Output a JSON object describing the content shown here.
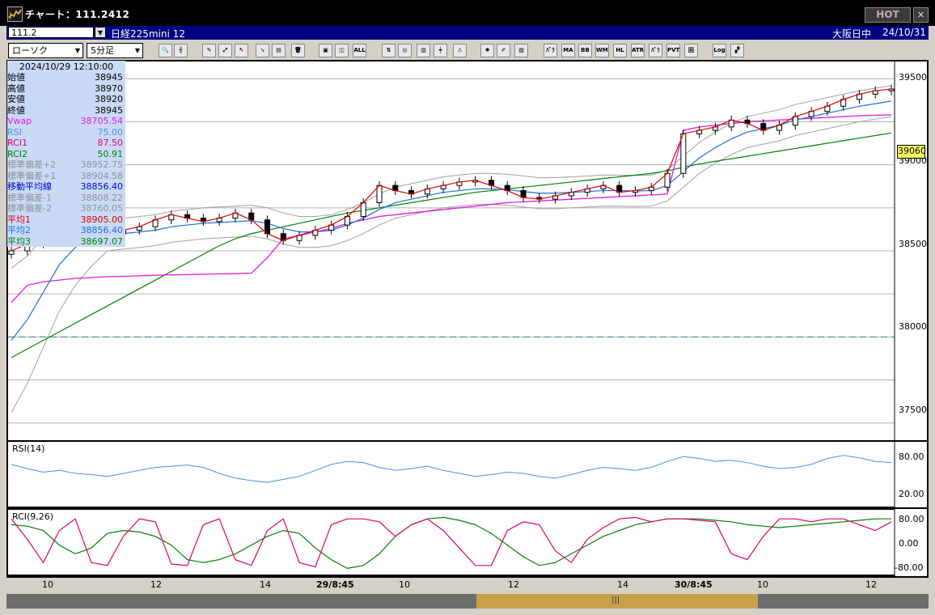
{
  "window": {
    "title": "チャート：111.2412",
    "hot_label": "HOT",
    "close_label": "×"
  },
  "info": {
    "symbol_code": "111.2",
    "symbol_name": "日経225mini 12",
    "market": "大阪日中",
    "date": "24/10/31"
  },
  "toolbar": {
    "chart_type": "ローソク",
    "interval": "5分足",
    "buttons": [
      {
        "label": "🔍"
      },
      {
        "label": "╫"
      },
      {
        "label": "✎"
      },
      {
        "label": "⤢"
      },
      {
        "label": "↖"
      },
      {
        "label": "➘"
      },
      {
        "label": "▤"
      },
      {
        "label": "🗑"
      },
      {
        "label": "▣"
      },
      {
        "label": "◫"
      },
      {
        "label": "ALL"
      },
      {
        "label": "⇅"
      },
      {
        "label": "◎"
      },
      {
        "label": "▥"
      },
      {
        "label": "┿"
      },
      {
        "label": "⚠"
      },
      {
        "label": "✹"
      },
      {
        "label": "✐"
      },
      {
        "label": "▧"
      },
      {
        "label": "ﾊﾞﾗ"
      },
      {
        "label": "MA"
      },
      {
        "label": "BB"
      },
      {
        "label": "WMA"
      },
      {
        "label": "HL"
      },
      {
        "label": "ATR"
      },
      {
        "label": "ﾊﾟﾗ"
      },
      {
        "label": "PVT"
      },
      {
        "label": "回"
      },
      {
        "label": "Log"
      },
      {
        "label": "▞"
      }
    ]
  },
  "panel": {
    "timestamp": "2024/10/29  12:10:00",
    "rows": [
      {
        "label": "始値",
        "value": "38945",
        "color": "#000000"
      },
      {
        "label": "高値",
        "value": "38970",
        "color": "#000000"
      },
      {
        "label": "安値",
        "value": "38920",
        "color": "#000000"
      },
      {
        "label": "終値",
        "value": "38945",
        "color": "#000000"
      },
      {
        "label": "Vwap",
        "value": "38705.54",
        "color": "#e01be0"
      },
      {
        "label": "RSI",
        "value": "75.00",
        "color": "#4a90e2"
      },
      {
        "label": "RCI1",
        "value": "87.50",
        "color": "#e0006a"
      },
      {
        "label": "RCI2",
        "value": "50.91",
        "color": "#008000"
      },
      {
        "label": "標準偏差+2",
        "value": "38952.75",
        "color": "#909090"
      },
      {
        "label": "標準偏差+1",
        "value": "38904.58",
        "color": "#909090"
      },
      {
        "label": "移動平均線",
        "value": "38856.40",
        "color": "#0000c0"
      },
      {
        "label": "標準偏差-1",
        "value": "38808.22",
        "color": "#909090"
      },
      {
        "label": "標準偏差-2",
        "value": "38760.05",
        "color": "#909090"
      },
      {
        "label": "平均1",
        "value": "38905.00",
        "color": "#e00000"
      },
      {
        "label": "平均2",
        "value": "38856.40",
        "color": "#1e6fd9"
      },
      {
        "label": "平均3",
        "value": "38697.07",
        "color": "#008000"
      }
    ]
  },
  "price_axis": {
    "ticks": [
      "39500",
      "39000",
      "38500",
      "38000",
      "37500"
    ],
    "current_price": "39060",
    "dashed_level": 38000
  },
  "rsi": {
    "label": "RSI(14)",
    "ticks": [
      "80.00",
      "20.00"
    ]
  },
  "rci": {
    "label": "RCI(9,26)",
    "ticks": [
      "80.00",
      "0.00",
      "-80.00"
    ]
  },
  "time_axis": {
    "labels": [
      "10",
      "12",
      "14",
      "29/8:45",
      "10",
      "12",
      "14",
      "30/8:45",
      "10",
      "12"
    ]
  },
  "colors": {
    "ma_blue": "#1e6fd9",
    "vwap": "#e01be0",
    "ma_green": "#008000",
    "avg_red": "#e00000",
    "bband": "#a0a0a0",
    "rsi": "#4a90e2",
    "rci_short": "#e0006a",
    "rci_long": "#008000"
  },
  "chart_data": {
    "type": "line",
    "y_range": [
      37400,
      39600
    ],
    "price_close": [
      38500,
      38540,
      38560,
      38580,
      38590,
      38580,
      38600,
      38620,
      38640,
      38680,
      38710,
      38690,
      38670,
      38690,
      38720,
      38680,
      38600,
      38560,
      38590,
      38620,
      38650,
      38700,
      38780,
      38880,
      38850,
      38830,
      38860,
      38880,
      38900,
      38910,
      38880,
      38850,
      38810,
      38800,
      38820,
      38840,
      38860,
      38880,
      38840,
      38850,
      38870,
      38950,
      39180,
      39200,
      39220,
      39260,
      39240,
      39200,
      39230,
      39280,
      39310,
      39340,
      39380,
      39410,
      39430,
      39440
    ],
    "ma_blue": [
      37980,
      38100,
      38260,
      38420,
      38520,
      38580,
      38590,
      38600,
      38610,
      38620,
      38640,
      38650,
      38660,
      38665,
      38670,
      38675,
      38660,
      38630,
      38610,
      38610,
      38620,
      38650,
      38690,
      38740,
      38780,
      38800,
      38820,
      38840,
      38850,
      38860,
      38860,
      38855,
      38845,
      38835,
      38835,
      38840,
      38845,
      38850,
      38850,
      38848,
      38850,
      38880,
      38960,
      39040,
      39100,
      39150,
      39190,
      39210,
      39230,
      39260,
      39280,
      39300,
      39320,
      39340,
      39355,
      39370
    ],
    "vwap": [
      38200,
      38300,
      38320,
      38330,
      38340,
      38345,
      38350,
      38352,
      38355,
      38358,
      38360,
      38362,
      38364,
      38366,
      38368,
      38370,
      38460,
      38570,
      38590,
      38610,
      38630,
      38660,
      38680,
      38700,
      38710,
      38720,
      38730,
      38740,
      38750,
      38760,
      38770,
      38780,
      38785,
      38790,
      38795,
      38800,
      38805,
      38810,
      38815,
      38820,
      38825,
      38830,
      39200,
      39220,
      39230,
      39240,
      39250,
      39255,
      39260,
      39265,
      39270,
      39275,
      39280,
      39285,
      39288,
      39290
    ],
    "ma_green": [
      37880,
      37930,
      37980,
      38030,
      38080,
      38130,
      38180,
      38230,
      38280,
      38330,
      38380,
      38430,
      38480,
      38530,
      38570,
      38600,
      38620,
      38640,
      38660,
      38680,
      38700,
      38720,
      38735,
      38750,
      38765,
      38780,
      38795,
      38810,
      38825,
      38840,
      38850,
      38860,
      38870,
      38880,
      38890,
      38900,
      38910,
      38920,
      38930,
      38940,
      38950,
      38965,
      38985,
      39005,
      39020,
      39035,
      39050,
      39065,
      39080,
      39095,
      39110,
      39125,
      39140,
      39155,
      39170,
      39185
    ],
    "rsi": [
      65,
      58,
      52,
      55,
      50,
      48,
      45,
      50,
      55,
      60,
      62,
      64,
      60,
      50,
      42,
      38,
      35,
      40,
      45,
      55,
      65,
      70,
      68,
      60,
      55,
      58,
      62,
      55,
      50,
      45,
      48,
      52,
      50,
      45,
      42,
      48,
      55,
      60,
      58,
      55,
      60,
      70,
      78,
      75,
      70,
      72,
      68,
      62,
      58,
      60,
      65,
      75,
      80,
      76,
      70,
      68
    ],
    "rci_short": [
      80,
      10,
      -70,
      40,
      80,
      -70,
      -80,
      20,
      80,
      70,
      -75,
      -80,
      60,
      80,
      -60,
      -80,
      40,
      80,
      -70,
      -85,
      60,
      80,
      80,
      70,
      20,
      60,
      80,
      40,
      -20,
      -80,
      -80,
      40,
      70,
      60,
      -30,
      -70,
      10,
      50,
      80,
      85,
      70,
      80,
      80,
      75,
      70,
      -40,
      -60,
      20,
      80,
      80,
      70,
      80,
      80,
      60,
      40,
      70
    ],
    "rci_long": [
      60,
      55,
      40,
      -10,
      -40,
      -20,
      30,
      40,
      35,
      20,
      -10,
      -60,
      -70,
      -60,
      -40,
      -10,
      20,
      40,
      30,
      -20,
      -60,
      -90,
      -80,
      -40,
      20,
      60,
      80,
      85,
      75,
      60,
      30,
      -10,
      -50,
      -80,
      -70,
      -40,
      -10,
      20,
      40,
      60,
      70,
      80,
      80,
      80,
      75,
      70,
      60,
      55,
      50,
      55,
      60,
      65,
      70,
      75,
      80,
      80
    ]
  }
}
